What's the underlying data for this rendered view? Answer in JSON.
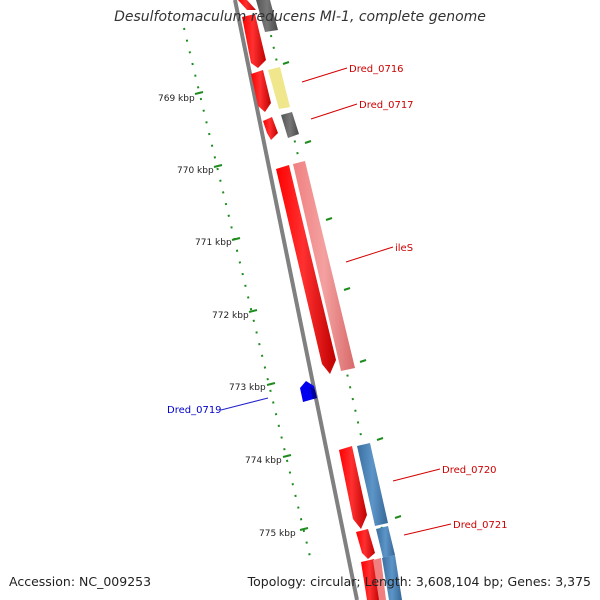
{
  "title": "Desulfotomaculum reducens MI-1, complete genome",
  "accession": "Accession: NC_009253",
  "summary": "Topology: circular; Length: 3,608,104 bp; Genes: 3,375",
  "ticks": [
    {
      "label": "769 kbp",
      "kbp": 769
    },
    {
      "label": "770 kbp",
      "kbp": 770
    },
    {
      "label": "771 kbp",
      "kbp": 771
    },
    {
      "label": "772 kbp",
      "kbp": 772
    },
    {
      "label": "773 kbp",
      "kbp": 773
    },
    {
      "label": "774 kbp",
      "kbp": 774
    },
    {
      "label": "775 kbp",
      "kbp": 775
    }
  ],
  "genes": [
    {
      "label": "Dred_0716",
      "color": "#cc0000"
    },
    {
      "label": "Dred_0717",
      "color": "#cc0000"
    },
    {
      "label": "ileS",
      "color": "#cc0000"
    },
    {
      "label": "Dred_0719",
      "color": "#0000cc"
    },
    {
      "label": "Dred_0720",
      "color": "#cc0000"
    },
    {
      "label": "Dred_0721",
      "color": "#cc0000"
    }
  ],
  "colors": {
    "forward_cds": "#ff0000",
    "rna_feature": "#f08080",
    "reverse_cds": "#0000ff",
    "gray_feature": "#696969",
    "yellow_feature": "#f0e68c",
    "steel_feature": "#4682b4",
    "ruler": "#008000",
    "backbone": "#808080"
  }
}
